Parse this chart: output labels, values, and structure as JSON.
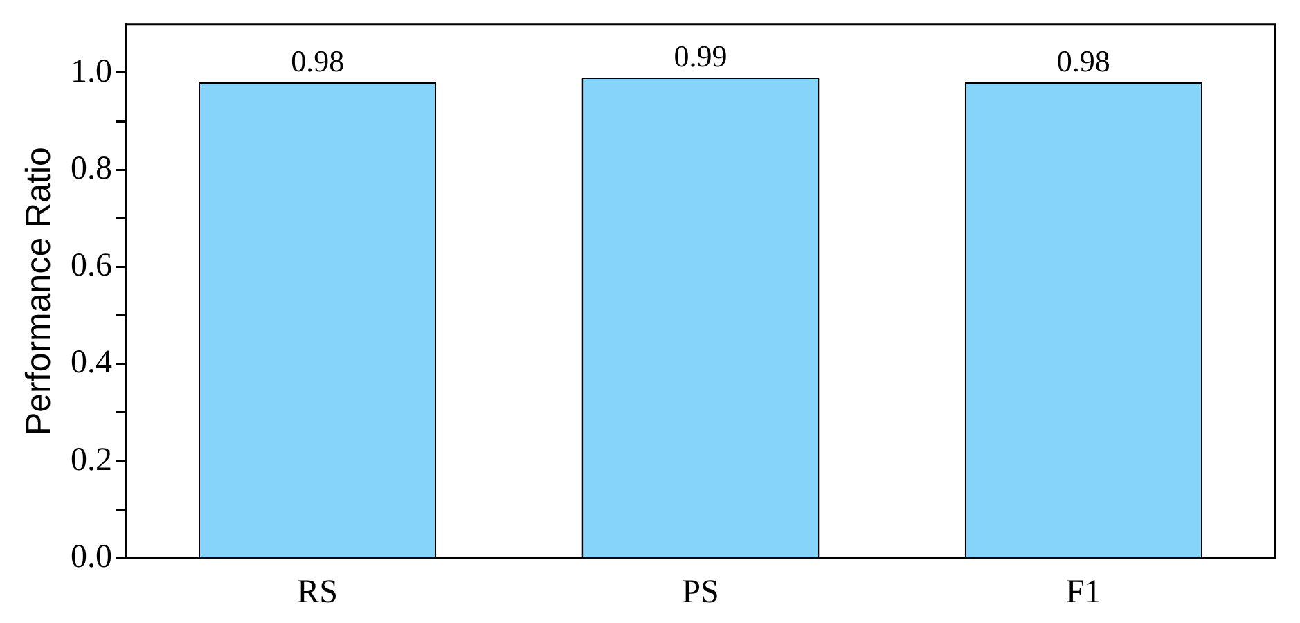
{
  "chart_data": {
    "type": "bar",
    "ylabel": "Performance Ratio",
    "categories": [
      "RS",
      "PS",
      "F1"
    ],
    "values": [
      0.98,
      0.99,
      0.98
    ],
    "color": "#87d4fb",
    "ylim": [
      0,
      1.1
    ],
    "yticks": [
      {
        "value": 0,
        "label": "0.0"
      },
      {
        "value": 0.1,
        "label": null
      },
      {
        "value": 0.2,
        "label": "0.2"
      },
      {
        "value": 0.3,
        "label": null
      },
      {
        "value": 0.4,
        "label": "0.4"
      },
      {
        "value": 0.5,
        "label": null
      },
      {
        "value": 0.6,
        "label": "0.6"
      },
      {
        "value": 0.7,
        "label": null
      },
      {
        "value": 0.8,
        "label": "0.8"
      },
      {
        "value": 0.9,
        "label": null
      },
      {
        "value": 1,
        "label": "1.0"
      }
    ],
    "data_labels": true,
    "grid": false,
    "legend": false
  }
}
